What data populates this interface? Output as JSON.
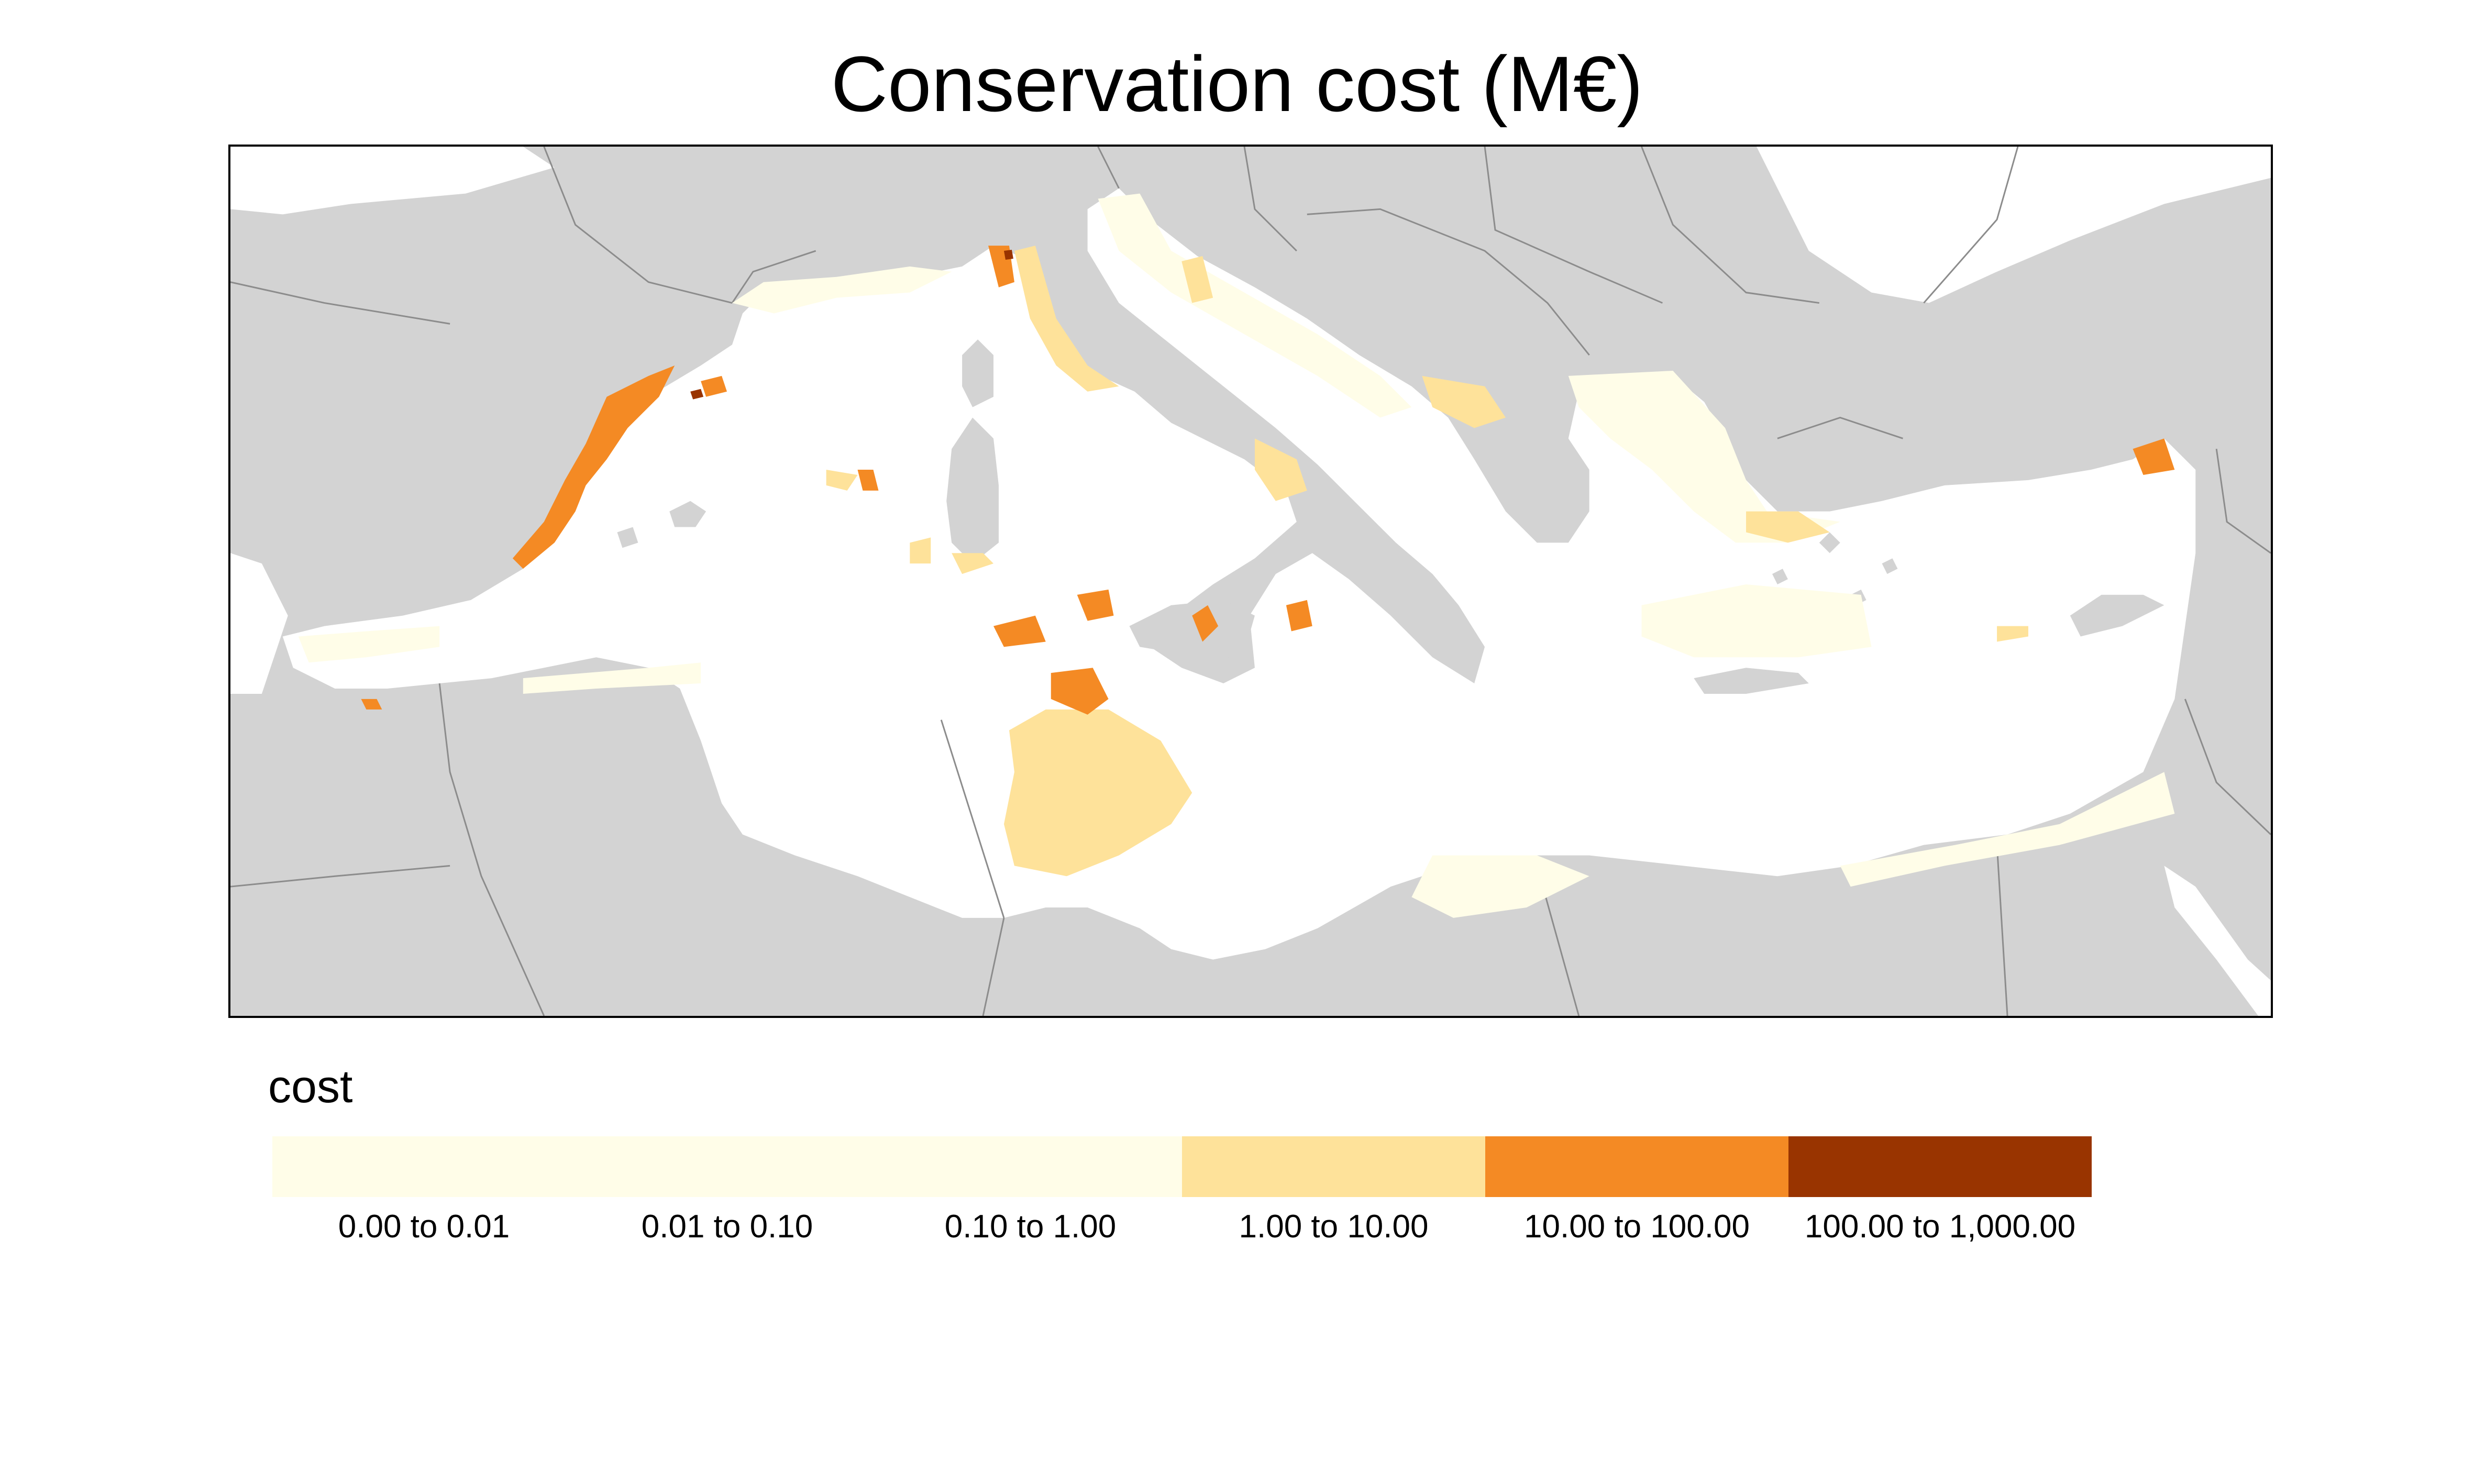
{
  "title": "Conservation cost (M€)",
  "legend": {
    "title": "cost",
    "classes": [
      {
        "label": "0.00 to 0.01",
        "color": "#FFFDE8"
      },
      {
        "label": "0.01 to 0.10",
        "color": "#FFFDE8"
      },
      {
        "label": "0.10 to 1.00",
        "color": "#FFFDE8"
      },
      {
        "label": "1.00 to 10.00",
        "color": "#FEE29A"
      },
      {
        "label": "10.00 to 100.00",
        "color": "#F48A24"
      },
      {
        "label": "100.00 to 1,000.00",
        "color": "#993400"
      }
    ]
  },
  "map": {
    "land_color": "#D3D3D3",
    "border_color": "#8C8C8C",
    "sea_color": "#FFFFFF"
  }
}
